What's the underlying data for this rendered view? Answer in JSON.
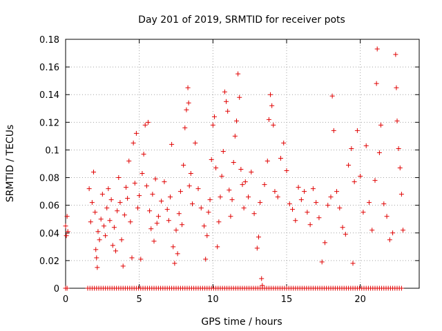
{
  "chart_data": {
    "type": "scatter",
    "title": "Day 201 of 2019, SRMTID for receiver pots",
    "xlabel": "GPS time / hours",
    "ylabel": "SRMTID / TECUs",
    "xlim": [
      0,
      24
    ],
    "ylim": [
      0,
      0.18
    ],
    "xticks": [
      0,
      5,
      10,
      15,
      20
    ],
    "xtick_labels": [
      "0",
      "5",
      "10",
      "15",
      "20"
    ],
    "yticks": [
      0,
      0.02,
      0.04,
      0.06,
      0.08,
      0.1,
      0.12,
      0.14,
      0.16,
      0.18
    ],
    "ytick_labels": [
      "0",
      "0.02",
      "0.04",
      "0.06",
      "0.08",
      "0.1",
      "0.12",
      "0.14",
      "0.16",
      "0.18"
    ],
    "grid": true,
    "marker": "+",
    "color": "#e00000",
    "series": [
      {
        "name": "pots",
        "points": [
          [
            0.0,
            0.045
          ],
          [
            0.05,
            0.038
          ],
          [
            0.1,
            0.052
          ],
          [
            0.15,
            0.041
          ],
          [
            1.6,
            0.072
          ],
          [
            1.7,
            0.048
          ],
          [
            1.8,
            0.062
          ],
          [
            1.9,
            0.084
          ],
          [
            2.0,
            0.055
          ],
          [
            2.05,
            0.028
          ],
          [
            2.1,
            0.022
          ],
          [
            2.15,
            0.015
          ],
          [
            2.2,
            0.041
          ],
          [
            2.3,
            0.035
          ],
          [
            2.4,
            0.05
          ],
          [
            2.5,
            0.068
          ],
          [
            2.6,
            0.045
          ],
          [
            2.7,
            0.038
          ],
          [
            2.8,
            0.058
          ],
          [
            2.9,
            0.072
          ],
          [
            3.0,
            0.049
          ],
          [
            3.1,
            0.064
          ],
          [
            3.2,
            0.031
          ],
          [
            3.3,
            0.044
          ],
          [
            3.4,
            0.027
          ],
          [
            3.5,
            0.056
          ],
          [
            3.6,
            0.08
          ],
          [
            3.7,
            0.062
          ],
          [
            3.8,
            0.035
          ],
          [
            3.9,
            0.016
          ],
          [
            4.0,
            0.053
          ],
          [
            4.1,
            0.073
          ],
          [
            4.2,
            0.065
          ],
          [
            4.3,
            0.092
          ],
          [
            4.4,
            0.048
          ],
          [
            4.5,
            0.022
          ],
          [
            4.6,
            0.105
          ],
          [
            4.7,
            0.076
          ],
          [
            4.8,
            0.112
          ],
          [
            4.9,
            0.058
          ],
          [
            5.0,
            0.067
          ],
          [
            5.1,
            0.021
          ],
          [
            5.2,
            0.083
          ],
          [
            5.3,
            0.097
          ],
          [
            5.4,
            0.118
          ],
          [
            5.5,
            0.074
          ],
          [
            5.6,
            0.12
          ],
          [
            5.7,
            0.056
          ],
          [
            5.8,
            0.043
          ],
          [
            5.9,
            0.068
          ],
          [
            6.0,
            0.034
          ],
          [
            6.1,
            0.079
          ],
          [
            6.2,
            0.047
          ],
          [
            6.3,
            0.052
          ],
          [
            6.5,
            0.063
          ],
          [
            6.7,
            0.077
          ],
          [
            6.9,
            0.057
          ],
          [
            7.0,
            0.049
          ],
          [
            7.1,
            0.066
          ],
          [
            7.2,
            0.104
          ],
          [
            7.3,
            0.03
          ],
          [
            7.4,
            0.018
          ],
          [
            7.5,
            0.042
          ],
          [
            7.6,
            0.025
          ],
          [
            7.7,
            0.054
          ],
          [
            7.8,
            0.07
          ],
          [
            7.9,
            0.046
          ],
          [
            8.0,
            0.089
          ],
          [
            8.1,
            0.116
          ],
          [
            8.2,
            0.129
          ],
          [
            8.3,
            0.145
          ],
          [
            8.35,
            0.134
          ],
          [
            8.4,
            0.074
          ],
          [
            8.5,
            0.083
          ],
          [
            8.6,
            0.061
          ],
          [
            8.8,
            0.105
          ],
          [
            9.0,
            0.072
          ],
          [
            9.2,
            0.058
          ],
          [
            9.4,
            0.045
          ],
          [
            9.5,
            0.021
          ],
          [
            9.6,
            0.038
          ],
          [
            9.7,
            0.055
          ],
          [
            9.8,
            0.064
          ],
          [
            9.9,
            0.093
          ],
          [
            10.0,
            0.118
          ],
          [
            10.1,
            0.124
          ],
          [
            10.2,
            0.087
          ],
          [
            10.3,
            0.03
          ],
          [
            10.4,
            0.048
          ],
          [
            10.5,
            0.066
          ],
          [
            10.6,
            0.081
          ],
          [
            10.7,
            0.099
          ],
          [
            10.8,
            0.142
          ],
          [
            10.9,
            0.135
          ],
          [
            11.0,
            0.128
          ],
          [
            11.1,
            0.071
          ],
          [
            11.2,
            0.052
          ],
          [
            11.3,
            0.064
          ],
          [
            11.4,
            0.091
          ],
          [
            11.5,
            0.11
          ],
          [
            11.6,
            0.121
          ],
          [
            11.7,
            0.155
          ],
          [
            11.8,
            0.138
          ],
          [
            11.9,
            0.086
          ],
          [
            12.0,
            0.075
          ],
          [
            12.1,
            0.058
          ],
          [
            12.2,
            0.077
          ],
          [
            12.4,
            0.066
          ],
          [
            12.6,
            0.084
          ],
          [
            12.8,
            0.054
          ],
          [
            13.0,
            0.029
          ],
          [
            13.1,
            0.037
          ],
          [
            13.2,
            0.062
          ],
          [
            13.3,
            0.007
          ],
          [
            13.35,
            0.002
          ],
          [
            13.5,
            0.075
          ],
          [
            13.7,
            0.092
          ],
          [
            13.8,
            0.122
          ],
          [
            13.9,
            0.14
          ],
          [
            14.0,
            0.132
          ],
          [
            14.1,
            0.118
          ],
          [
            14.2,
            0.07
          ],
          [
            14.4,
            0.066
          ],
          [
            14.6,
            0.094
          ],
          [
            14.8,
            0.105
          ],
          [
            15.0,
            0.085
          ],
          [
            15.2,
            0.061
          ],
          [
            15.4,
            0.057
          ],
          [
            15.6,
            0.049
          ],
          [
            15.8,
            0.073
          ],
          [
            16.0,
            0.064
          ],
          [
            16.2,
            0.07
          ],
          [
            16.4,
            0.055
          ],
          [
            16.6,
            0.046
          ],
          [
            16.8,
            0.072
          ],
          [
            17.0,
            0.062
          ],
          [
            17.2,
            0.051
          ],
          [
            17.4,
            0.019
          ],
          [
            17.6,
            0.033
          ],
          [
            17.8,
            0.06
          ],
          [
            18.0,
            0.066
          ],
          [
            18.1,
            0.139
          ],
          [
            18.2,
            0.114
          ],
          [
            18.4,
            0.07
          ],
          [
            18.6,
            0.058
          ],
          [
            18.8,
            0.044
          ],
          [
            19.0,
            0.039
          ],
          [
            19.2,
            0.089
          ],
          [
            19.4,
            0.101
          ],
          [
            19.5,
            0.018
          ],
          [
            19.6,
            0.077
          ],
          [
            19.8,
            0.114
          ],
          [
            20.0,
            0.081
          ],
          [
            20.2,
            0.055
          ],
          [
            20.4,
            0.103
          ],
          [
            20.6,
            0.062
          ],
          [
            20.8,
            0.042
          ],
          [
            21.0,
            0.078
          ],
          [
            21.1,
            0.148
          ],
          [
            21.15,
            0.173
          ],
          [
            21.3,
            0.098
          ],
          [
            21.4,
            0.118
          ],
          [
            21.6,
            0.061
          ],
          [
            21.8,
            0.052
          ],
          [
            22.0,
            0.035
          ],
          [
            22.2,
            0.04
          ],
          [
            22.4,
            0.169
          ],
          [
            22.45,
            0.145
          ],
          [
            22.5,
            0.121
          ],
          [
            22.6,
            0.101
          ],
          [
            22.7,
            0.087
          ],
          [
            22.8,
            0.068
          ],
          [
            22.9,
            0.042
          ]
        ]
      }
    ],
    "zero_band": {
      "y": 0,
      "x_start": 1.5,
      "x_end": 22.9,
      "step": 0.15,
      "extra_x": [
        0,
        0.1
      ]
    }
  }
}
